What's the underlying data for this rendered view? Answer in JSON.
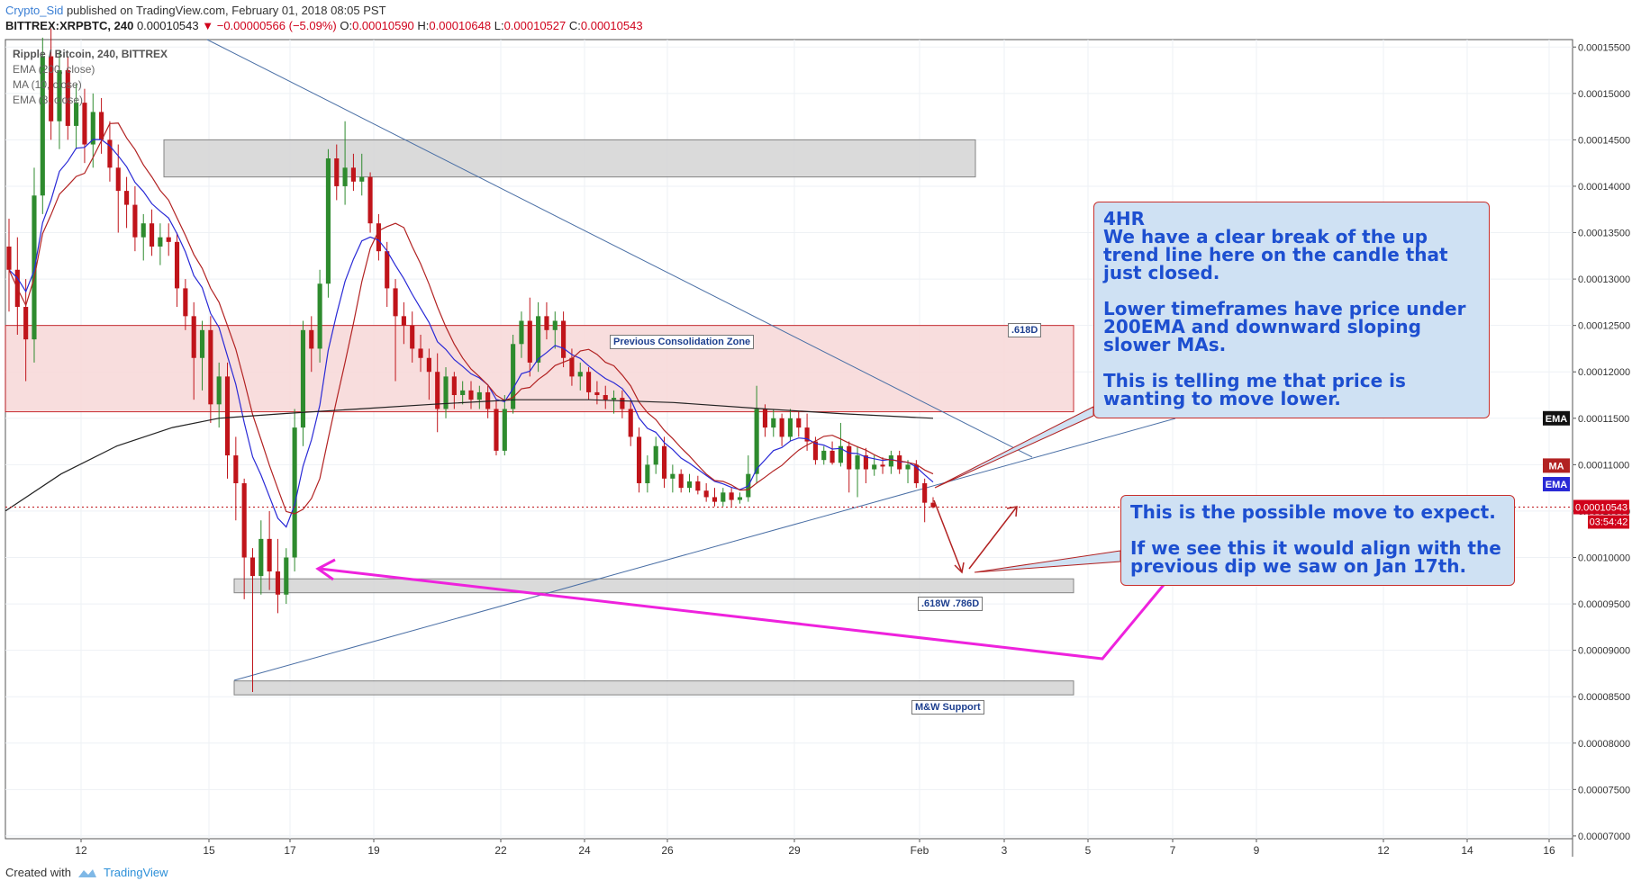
{
  "header": {
    "author": "Crypto_Sid",
    "published": "published on TradingView.com, February 01, 2018 08:05 PST"
  },
  "ohlc": {
    "symbol": "BITTREX:XRPBTC, 240",
    "price": "0.00010543",
    "change": "▼ −0.00000566 (−5.09%)",
    "o_label": "O:",
    "o": "0.00010590",
    "h_label": "H:",
    "h": "0.00010648",
    "l_label": "L:",
    "l": "0.00010527",
    "c_label": "C:",
    "c": "0.00010543"
  },
  "legend": {
    "main": "Ripple / Bitcoin, 240, BITTREX",
    "ema200": "EMA (200, close)",
    "ma": "MA (10, close)",
    "ema8": "EMA (8, close)"
  },
  "footer": {
    "created_with": "Created with",
    "brand": "TradingView"
  },
  "callouts": {
    "top": {
      "title": "4HR",
      "p1": "We have a clear break of the up trend line here on the candle that just closed.",
      "p2": "Lower timeframes have price under 200EMA and downward sloping slower MAs.",
      "p3": "This is telling me that price is wanting to move lower."
    },
    "bottom": {
      "p1": "This is the possible move to expect.",
      "p2": "If we see this it would align with the previous dip we saw on Jan 17th."
    }
  },
  "zone_labels": {
    "consolidation": "Previous Consolidation Zone",
    "fib618d": ".618D",
    "fib618w786d": ".618W .786D",
    "mw_support": "M&W Support"
  },
  "colors": {
    "up": "#2e8b2e",
    "down": "#c0141a",
    "ema8": "#2929d6",
    "ma10": "#b22222",
    "ema200": "#222222",
    "trendline": "#4a6fa5",
    "arrow_pink": "#ee22dd",
    "zone_red": "#f8dada",
    "zone_grey": "#d6d6d6"
  },
  "chart_data": {
    "type": "candlestick",
    "symbol": "XRPBTC",
    "exchange": "BITTREX",
    "timeframe": "240",
    "x_ticks": [
      "12",
      "15",
      "17",
      "19",
      "22",
      "24",
      "26",
      "29",
      "Feb",
      "3",
      "5",
      "7",
      "9",
      "12",
      "14",
      "16"
    ],
    "y_ticks": [
      "0.00015500",
      "0.00015000",
      "0.00014500",
      "0.00014000",
      "0.00013500",
      "0.00013000",
      "0.00012500",
      "0.00012000",
      "0.00011500",
      "0.00011000",
      "0.00010500",
      "0.00010000",
      "0.00009500",
      "0.00009000",
      "0.00008500",
      "0.00008000",
      "0.00007500",
      "0.00007000"
    ],
    "ylim": [
      6.97e-05,
      0.0001558
    ],
    "last_price_label": "0.00010543",
    "countdown": "03:54:42",
    "indicator_tags": [
      "EMA",
      "MA",
      "EMA"
    ],
    "candles": [
      {
        "o": 0.0001335,
        "h": 0.0001365,
        "l": 0.0001265,
        "c": 0.000131
      },
      {
        "o": 0.000131,
        "h": 0.0001345,
        "l": 0.000124,
        "c": 0.000127
      },
      {
        "o": 0.000127,
        "h": 0.00013,
        "l": 0.000119,
        "c": 0.0001235
      },
      {
        "o": 0.0001235,
        "h": 0.000142,
        "l": 0.000121,
        "c": 0.000139
      },
      {
        "o": 0.000139,
        "h": 0.000156,
        "l": 0.000137,
        "c": 0.000154
      },
      {
        "o": 0.000154,
        "h": 0.000157,
        "l": 0.000145,
        "c": 0.000147
      },
      {
        "o": 0.000147,
        "h": 0.0001545,
        "l": 0.000144,
        "c": 0.0001525
      },
      {
        "o": 0.0001525,
        "h": 0.000154,
        "l": 0.000145,
        "c": 0.0001465
      },
      {
        "o": 0.0001465,
        "h": 0.000151,
        "l": 0.000144,
        "c": 0.000149
      },
      {
        "o": 0.000149,
        "h": 0.0001505,
        "l": 0.0001425,
        "c": 0.0001445
      },
      {
        "o": 0.0001445,
        "h": 0.00015,
        "l": 0.000142,
        "c": 0.000148
      },
      {
        "o": 0.000148,
        "h": 0.0001495,
        "l": 0.0001435,
        "c": 0.000145
      },
      {
        "o": 0.000145,
        "h": 0.000147,
        "l": 0.0001405,
        "c": 0.000142
      },
      {
        "o": 0.000142,
        "h": 0.0001445,
        "l": 0.000135,
        "c": 0.0001395
      },
      {
        "o": 0.0001395,
        "h": 0.000141,
        "l": 0.0001355,
        "c": 0.000138
      },
      {
        "o": 0.000138,
        "h": 0.00014,
        "l": 0.000133,
        "c": 0.0001345
      },
      {
        "o": 0.0001345,
        "h": 0.000137,
        "l": 0.000132,
        "c": 0.000136
      },
      {
        "o": 0.000136,
        "h": 0.0001375,
        "l": 0.0001325,
        "c": 0.0001335
      },
      {
        "o": 0.0001335,
        "h": 0.000136,
        "l": 0.0001315,
        "c": 0.0001345
      },
      {
        "o": 0.0001345,
        "h": 0.000136,
        "l": 0.0001325,
        "c": 0.000134
      },
      {
        "o": 0.000134,
        "h": 0.000135,
        "l": 0.000127,
        "c": 0.000129
      },
      {
        "o": 0.000129,
        "h": 0.00013,
        "l": 0.0001245,
        "c": 0.000126
      },
      {
        "o": 0.000126,
        "h": 0.0001275,
        "l": 0.000117,
        "c": 0.0001215
      },
      {
        "o": 0.0001215,
        "h": 0.0001255,
        "l": 0.000118,
        "c": 0.0001245
      },
      {
        "o": 0.0001245,
        "h": 0.000126,
        "l": 0.0001145,
        "c": 0.0001165
      },
      {
        "o": 0.0001165,
        "h": 0.000121,
        "l": 0.000114,
        "c": 0.0001195
      },
      {
        "o": 0.0001195,
        "h": 0.000121,
        "l": 0.0001085,
        "c": 0.000111
      },
      {
        "o": 0.000111,
        "h": 0.000113,
        "l": 0.000104,
        "c": 0.000108
      },
      {
        "o": 0.000108,
        "h": 0.0001085,
        "l": 9.55e-05,
        "c": 0.0001
      },
      {
        "o": 0.0001,
        "h": 0.000101,
        "l": 8.55e-05,
        "c": 9.8e-05
      },
      {
        "o": 9.8e-05,
        "h": 0.000104,
        "l": 9.6e-05,
        "c": 0.000102
      },
      {
        "o": 0.000102,
        "h": 0.000105,
        "l": 9.65e-05,
        "c": 9.85e-05
      },
      {
        "o": 9.85e-05,
        "h": 0.000102,
        "l": 9.4e-05,
        "c": 9.6e-05
      },
      {
        "o": 9.6e-05,
        "h": 0.000101,
        "l": 9.5e-05,
        "c": 0.0001
      },
      {
        "o": 0.0001,
        "h": 0.000116,
        "l": 9.85e-05,
        "c": 0.000114
      },
      {
        "o": 0.000114,
        "h": 0.0001255,
        "l": 0.000112,
        "c": 0.0001245
      },
      {
        "o": 0.0001245,
        "h": 0.000126,
        "l": 0.00012,
        "c": 0.0001225
      },
      {
        "o": 0.0001225,
        "h": 0.000131,
        "l": 0.000121,
        "c": 0.0001295
      },
      {
        "o": 0.0001295,
        "h": 0.000144,
        "l": 0.000128,
        "c": 0.000143
      },
      {
        "o": 0.000143,
        "h": 0.0001445,
        "l": 0.0001385,
        "c": 0.00014
      },
      {
        "o": 0.00014,
        "h": 0.000147,
        "l": 0.000138,
        "c": 0.000142
      },
      {
        "o": 0.000142,
        "h": 0.0001435,
        "l": 0.0001395,
        "c": 0.0001405
      },
      {
        "o": 0.0001405,
        "h": 0.0001435,
        "l": 0.000139,
        "c": 0.000141
      },
      {
        "o": 0.000141,
        "h": 0.0001415,
        "l": 0.000135,
        "c": 0.000136
      },
      {
        "o": 0.000136,
        "h": 0.000137,
        "l": 0.000132,
        "c": 0.000133
      },
      {
        "o": 0.000133,
        "h": 0.000134,
        "l": 0.000127,
        "c": 0.000129
      },
      {
        "o": 0.000129,
        "h": 0.00013,
        "l": 0.000119,
        "c": 0.000126
      },
      {
        "o": 0.000126,
        "h": 0.0001275,
        "l": 0.000123,
        "c": 0.000125
      },
      {
        "o": 0.000125,
        "h": 0.0001265,
        "l": 0.000121,
        "c": 0.0001225
      },
      {
        "o": 0.0001225,
        "h": 0.000124,
        "l": 0.00012,
        "c": 0.0001215
      },
      {
        "o": 0.0001215,
        "h": 0.0001225,
        "l": 0.000117,
        "c": 0.00012
      },
      {
        "o": 0.00012,
        "h": 0.000122,
        "l": 0.0001135,
        "c": 0.000116
      },
      {
        "o": 0.000116,
        "h": 0.0001205,
        "l": 0.000115,
        "c": 0.0001195
      },
      {
        "o": 0.0001195,
        "h": 0.00012,
        "l": 0.000116,
        "c": 0.0001175
      },
      {
        "o": 0.0001175,
        "h": 0.000119,
        "l": 0.0001165,
        "c": 0.000118
      },
      {
        "o": 0.000118,
        "h": 0.000119,
        "l": 0.000116,
        "c": 0.000117
      },
      {
        "o": 0.000117,
        "h": 0.0001185,
        "l": 0.000116,
        "c": 0.0001178
      },
      {
        "o": 0.0001178,
        "h": 0.0001185,
        "l": 0.000115,
        "c": 0.000116
      },
      {
        "o": 0.000116,
        "h": 0.000117,
        "l": 0.000111,
        "c": 0.0001115
      },
      {
        "o": 0.0001115,
        "h": 0.0001175,
        "l": 0.000111,
        "c": 0.000116
      },
      {
        "o": 0.000116,
        "h": 0.000124,
        "l": 0.0001155,
        "c": 0.000123
      },
      {
        "o": 0.000123,
        "h": 0.0001265,
        "l": 0.0001215,
        "c": 0.0001255
      },
      {
        "o": 0.0001255,
        "h": 0.000128,
        "l": 0.0001195,
        "c": 0.000121
      },
      {
        "o": 0.000121,
        "h": 0.0001275,
        "l": 0.00012,
        "c": 0.000126
      },
      {
        "o": 0.000126,
        "h": 0.0001275,
        "l": 0.0001235,
        "c": 0.0001245
      },
      {
        "o": 0.0001245,
        "h": 0.0001265,
        "l": 0.0001225,
        "c": 0.0001255
      },
      {
        "o": 0.0001255,
        "h": 0.0001265,
        "l": 0.0001205,
        "c": 0.0001215
      },
      {
        "o": 0.0001215,
        "h": 0.0001225,
        "l": 0.0001185,
        "c": 0.0001195
      },
      {
        "o": 0.0001195,
        "h": 0.000121,
        "l": 0.000118,
        "c": 0.00012
      },
      {
        "o": 0.00012,
        "h": 0.0001205,
        "l": 0.000117,
        "c": 0.0001178
      },
      {
        "o": 0.0001178,
        "h": 0.000119,
        "l": 0.0001165,
        "c": 0.0001175
      },
      {
        "o": 0.0001175,
        "h": 0.0001185,
        "l": 0.000116,
        "c": 0.000117
      },
      {
        "o": 0.000117,
        "h": 0.000118,
        "l": 0.0001155,
        "c": 0.0001172
      },
      {
        "o": 0.0001172,
        "h": 0.000118,
        "l": 0.000115,
        "c": 0.000116
      },
      {
        "o": 0.000116,
        "h": 0.000117,
        "l": 0.000112,
        "c": 0.000113
      },
      {
        "o": 0.000113,
        "h": 0.000114,
        "l": 0.000107,
        "c": 0.000108
      },
      {
        "o": 0.000108,
        "h": 0.000111,
        "l": 0.000107,
        "c": 0.00011
      },
      {
        "o": 0.00011,
        "h": 0.000113,
        "l": 0.000109,
        "c": 0.000112
      },
      {
        "o": 0.000112,
        "h": 0.000113,
        "l": 0.0001075,
        "c": 0.0001085
      },
      {
        "o": 0.0001085,
        "h": 0.00011,
        "l": 0.000107,
        "c": 0.000109
      },
      {
        "o": 0.000109,
        "h": 0.0001095,
        "l": 0.000107,
        "c": 0.0001075
      },
      {
        "o": 0.0001075,
        "h": 0.000109,
        "l": 0.000107,
        "c": 0.0001082
      },
      {
        "o": 0.0001082,
        "h": 0.0001088,
        "l": 0.0001068,
        "c": 0.0001072
      },
      {
        "o": 0.0001072,
        "h": 0.000108,
        "l": 0.000106,
        "c": 0.0001065
      },
      {
        "o": 0.0001065,
        "h": 0.0001075,
        "l": 0.0001055,
        "c": 0.000106
      },
      {
        "o": 0.000106,
        "h": 0.0001075,
        "l": 0.0001055,
        "c": 0.000107
      },
      {
        "o": 0.000107,
        "h": 0.0001075,
        "l": 0.0001055,
        "c": 0.0001062
      },
      {
        "o": 0.0001062,
        "h": 0.000107,
        "l": 0.0001058,
        "c": 0.0001065
      },
      {
        "o": 0.0001065,
        "h": 0.000111,
        "l": 0.000106,
        "c": 0.000109
      },
      {
        "o": 0.000109,
        "h": 0.0001185,
        "l": 0.000108,
        "c": 0.000116
      },
      {
        "o": 0.000116,
        "h": 0.0001165,
        "l": 0.000113,
        "c": 0.000114
      },
      {
        "o": 0.000114,
        "h": 0.000116,
        "l": 0.000113,
        "c": 0.000115
      },
      {
        "o": 0.000115,
        "h": 0.0001155,
        "l": 0.000112,
        "c": 0.000113
      },
      {
        "o": 0.000113,
        "h": 0.000116,
        "l": 0.0001125,
        "c": 0.000115
      },
      {
        "o": 0.000115,
        "h": 0.0001158,
        "l": 0.000113,
        "c": 0.000114
      },
      {
        "o": 0.000114,
        "h": 0.0001155,
        "l": 0.0001115,
        "c": 0.0001125
      },
      {
        "o": 0.0001125,
        "h": 0.000113,
        "l": 0.00011,
        "c": 0.0001105
      },
      {
        "o": 0.0001105,
        "h": 0.000112,
        "l": 0.00011,
        "c": 0.0001115
      },
      {
        "o": 0.0001115,
        "h": 0.0001125,
        "l": 0.00011,
        "c": 0.0001102
      },
      {
        "o": 0.0001102,
        "h": 0.0001145,
        "l": 0.0001098,
        "c": 0.000112
      },
      {
        "o": 0.000112,
        "h": 0.0001125,
        "l": 0.000107,
        "c": 0.0001095
      },
      {
        "o": 0.0001095,
        "h": 0.000112,
        "l": 0.0001065,
        "c": 0.000111
      },
      {
        "o": 0.000111,
        "h": 0.0001118,
        "l": 0.000108,
        "c": 0.0001095
      },
      {
        "o": 0.0001095,
        "h": 0.000111,
        "l": 0.0001088,
        "c": 0.00011
      },
      {
        "o": 0.00011,
        "h": 0.0001108,
        "l": 0.000109,
        "c": 0.0001098
      },
      {
        "o": 0.0001098,
        "h": 0.0001115,
        "l": 0.000109,
        "c": 0.000111
      },
      {
        "o": 0.000111,
        "h": 0.0001115,
        "l": 0.000109,
        "c": 0.0001095
      },
      {
        "o": 0.0001095,
        "h": 0.0001105,
        "l": 0.000108,
        "c": 0.00011
      },
      {
        "o": 0.00011,
        "h": 0.0001105,
        "l": 0.0001075,
        "c": 0.000108
      },
      {
        "o": 0.000108,
        "h": 0.0001085,
        "l": 0.0001038,
        "c": 0.0001059
      },
      {
        "o": 0.0001059,
        "h": 0.0001065,
        "l": 0.0001053,
        "c": 0.0001054
      }
    ],
    "ema200_points": [
      [
        0.000105,
        0
      ],
      [
        0.000109,
        0.06
      ],
      [
        0.000112,
        0.12
      ],
      [
        0.000114,
        0.18
      ],
      [
        0.000115,
        0.23
      ],
      [
        0.0001155,
        0.3
      ],
      [
        0.000116,
        0.38
      ],
      [
        0.0001165,
        0.46
      ],
      [
        0.000117,
        0.55
      ],
      [
        0.000117,
        0.63
      ],
      [
        0.0001167,
        0.72
      ],
      [
        0.000116,
        0.82
      ],
      [
        0.0001155,
        0.9
      ],
      [
        0.000115,
        1
      ]
    ],
    "zones": [
      {
        "name": "top resistance",
        "from": 0.000141,
        "to": 0.000145
      },
      {
        "name": "previous consolidation",
        "from": 0.0001157,
        "to": 0.000125
      },
      {
        "name": ".618W .786D",
        "from": 9.62e-05,
        "to": 9.77e-05
      },
      {
        "name": "M&W Support",
        "from": 8.52e-05,
        "to": 8.67e-05
      }
    ]
  }
}
